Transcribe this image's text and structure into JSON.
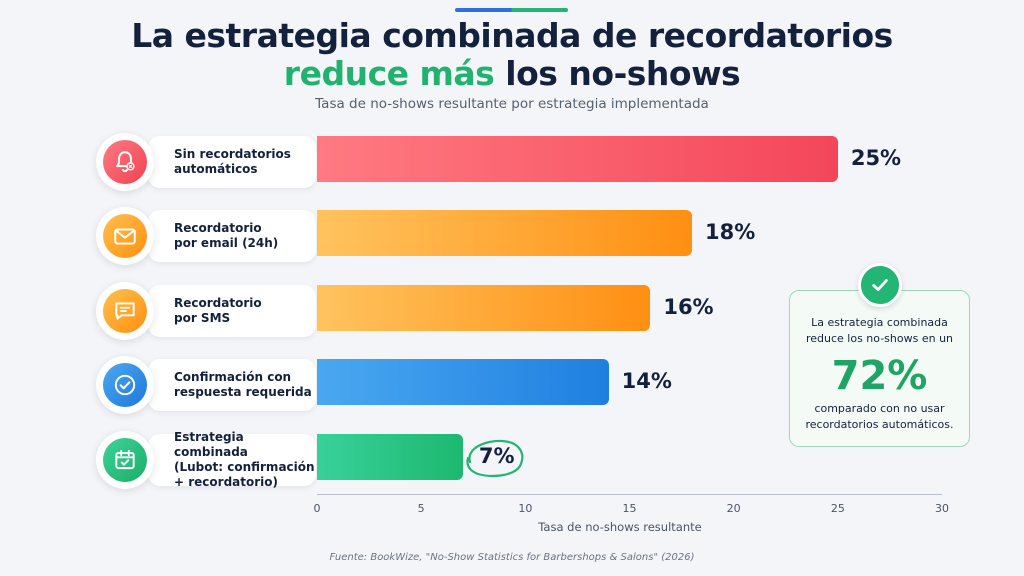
{
  "title": {
    "line1": "La estrategia combinada de recordatorios",
    "line2_highlight": "reduce más",
    "line2_rest": " los no-shows"
  },
  "subtitle": "Tasa de no-shows resultante por estrategia implementada",
  "categories": [
    {
      "label": "Sin recordatorios\nautomáticos",
      "icon": "bell-icon",
      "color": "#f4505d"
    },
    {
      "label": "Recordatorio\npor email (24h)",
      "icon": "envelope-icon",
      "color": "#ff9a1f"
    },
    {
      "label": "Recordatorio\npor SMS",
      "icon": "chat-bubble-icon",
      "color": "#ff9a1f"
    },
    {
      "label": "Confirmación con\nrespuesta requerida",
      "icon": "check-circle-icon",
      "color": "#2f8de4"
    },
    {
      "label": "Estrategia combinada\n(Lubot: confirmación\n+ recordatorio)",
      "icon": "calendar-check-icon",
      "color": "#22b573"
    }
  ],
  "chart_data": {
    "type": "bar",
    "orientation": "horizontal",
    "categories": [
      "Sin recordatorios automáticos",
      "Recordatorio por email (24h)",
      "Recordatorio por SMS",
      "Confirmación con respuesta requerida",
      "Estrategia combinada (Lubot: confirmación + recordatorio)"
    ],
    "values": [
      25,
      18,
      16,
      14,
      7
    ],
    "value_labels": [
      "25%",
      "18%",
      "16%",
      "14%",
      "7%"
    ],
    "colors": [
      "#f4505d",
      "#ff9a1f",
      "#ff9a1f",
      "#2f8de4",
      "#22b573"
    ],
    "xlabel": "Tasa de no-shows resultante",
    "xlim": [
      0,
      30
    ],
    "xticks": [
      0,
      5,
      10,
      15,
      20,
      25,
      30
    ],
    "grid": false
  },
  "callout": {
    "line1": "La estrategia combinada",
    "line2": "reduce los no-shows en un",
    "value": "72%",
    "line3": "comparado con no usar",
    "line4": "recordatorios automáticos."
  },
  "source": "Fuente: BookWize, \"No-Show Statistics for Barbershops & Salons\" (2026)"
}
